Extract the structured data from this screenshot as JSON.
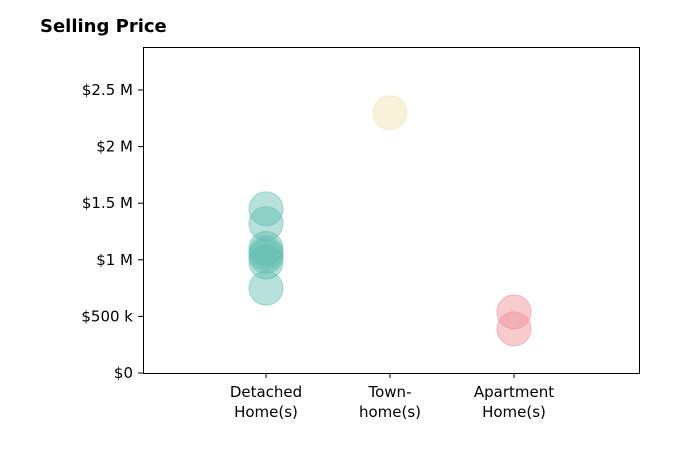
{
  "chart_data": {
    "type": "scatter",
    "title": "Selling Price",
    "xlabel": "",
    "ylabel": "",
    "categories": [
      "Detached\nHome(s)",
      "Town-\nhome(s)",
      "Apartment\nHome(s)"
    ],
    "ylim": [
      0,
      2880000
    ],
    "yticks": [
      {
        "value": 0,
        "label": "$0"
      },
      {
        "value": 500000,
        "label": "$500 k"
      },
      {
        "value": 1000000,
        "label": "$1 M"
      },
      {
        "value": 1500000,
        "label": "$1.5 M"
      },
      {
        "value": 2000000,
        "label": "$2 M"
      },
      {
        "value": 2500000,
        "label": "$2.5 M"
      }
    ],
    "grid": false,
    "series": [
      {
        "category": 0,
        "color": "#5fbdb0",
        "values": [
          1450000,
          1320000,
          1100000,
          1060000,
          1030000,
          980000,
          750000
        ]
      },
      {
        "category": 1,
        "color": "#f3dfb0",
        "values": [
          2300000
        ]
      },
      {
        "category": 2,
        "color": "#f08b95",
        "values": [
          540000,
          390000
        ]
      }
    ]
  }
}
